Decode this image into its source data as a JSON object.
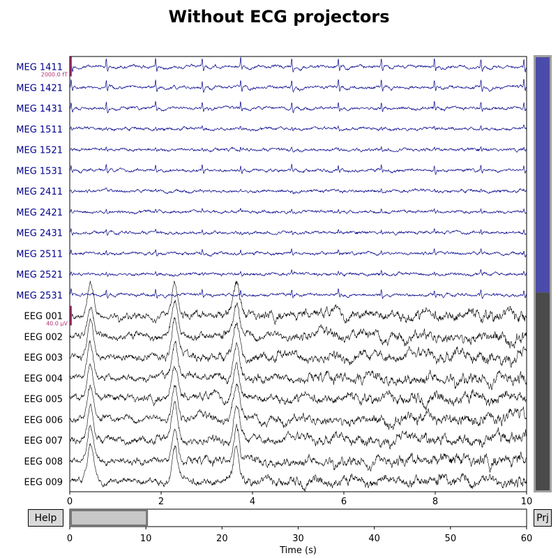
{
  "chart_data": {
    "type": "line",
    "title": "Without ECG projectors",
    "channels": [
      {
        "name": "MEG 1411",
        "type": "mag",
        "ecg_amp": 1.0
      },
      {
        "name": "MEG 1421",
        "type": "mag",
        "ecg_amp": 0.9
      },
      {
        "name": "MEG 1431",
        "type": "mag",
        "ecg_amp": 0.75
      },
      {
        "name": "MEG 1511",
        "type": "mag",
        "ecg_amp": 0.3
      },
      {
        "name": "MEG 1521",
        "type": "mag",
        "ecg_amp": 0.3
      },
      {
        "name": "MEG 1531",
        "type": "mag",
        "ecg_amp": 0.6
      },
      {
        "name": "MEG 2411",
        "type": "mag",
        "ecg_amp": 0.2
      },
      {
        "name": "MEG 2421",
        "type": "mag",
        "ecg_amp": 0.3
      },
      {
        "name": "MEG 2431",
        "type": "mag",
        "ecg_amp": 0.35
      },
      {
        "name": "MEG 2511",
        "type": "mag",
        "ecg_amp": 0.4
      },
      {
        "name": "MEG 2521",
        "type": "mag",
        "ecg_amp": 0.35
      },
      {
        "name": "MEG 2531",
        "type": "mag",
        "ecg_amp": 0.6
      },
      {
        "name": "EEG 001",
        "type": "eeg",
        "ecg_amp": 0.0
      },
      {
        "name": "EEG 002",
        "type": "eeg",
        "ecg_amp": 0.0
      },
      {
        "name": "EEG 003",
        "type": "eeg",
        "ecg_amp": 0.0
      },
      {
        "name": "EEG 004",
        "type": "eeg",
        "ecg_amp": 0.0
      },
      {
        "name": "EEG 005",
        "type": "eeg",
        "ecg_amp": 0.0
      },
      {
        "name": "EEG 006",
        "type": "eeg",
        "ecg_amp": 0.0
      },
      {
        "name": "EEG 007",
        "type": "eeg",
        "ecg_amp": 0.0
      },
      {
        "name": "EEG 008",
        "type": "eeg",
        "ecg_amp": 0.0
      },
      {
        "name": "EEG 009",
        "type": "eeg",
        "ecg_amp": 0.0
      }
    ],
    "x_range": [
      0,
      10
    ],
    "x_ticks": [
      0,
      2,
      4,
      6,
      8,
      10
    ],
    "heartbeat_times": [
      0.03,
      0.8,
      1.88,
      2.9,
      3.74,
      4.86,
      5.88,
      6.82,
      7.98,
      9.0,
      9.94
    ],
    "eeg_peak_times": [
      0.45,
      2.3,
      3.65
    ],
    "scalebars": [
      {
        "label": "2000.0 fT",
        "channel_index": 0
      },
      {
        "label": "40.0 µV",
        "channel_index": 12
      }
    ],
    "overview": {
      "x_range": [
        0,
        60
      ],
      "x_ticks": [
        0,
        10,
        20,
        30,
        40,
        50,
        60
      ],
      "window": [
        0,
        10
      ],
      "xlabel": "Time (s)"
    },
    "colors": {
      "mag": "#00008b",
      "eeg": "#000000",
      "scalebar": "#b0306f",
      "scroll_mag": "#4b4baa",
      "scroll_eeg": "#4a4a4a",
      "frame": "#a0a0a0",
      "window_fill": "#c8c8c8"
    }
  },
  "buttons": {
    "help_label": "Help",
    "projector_label": "Prj"
  }
}
